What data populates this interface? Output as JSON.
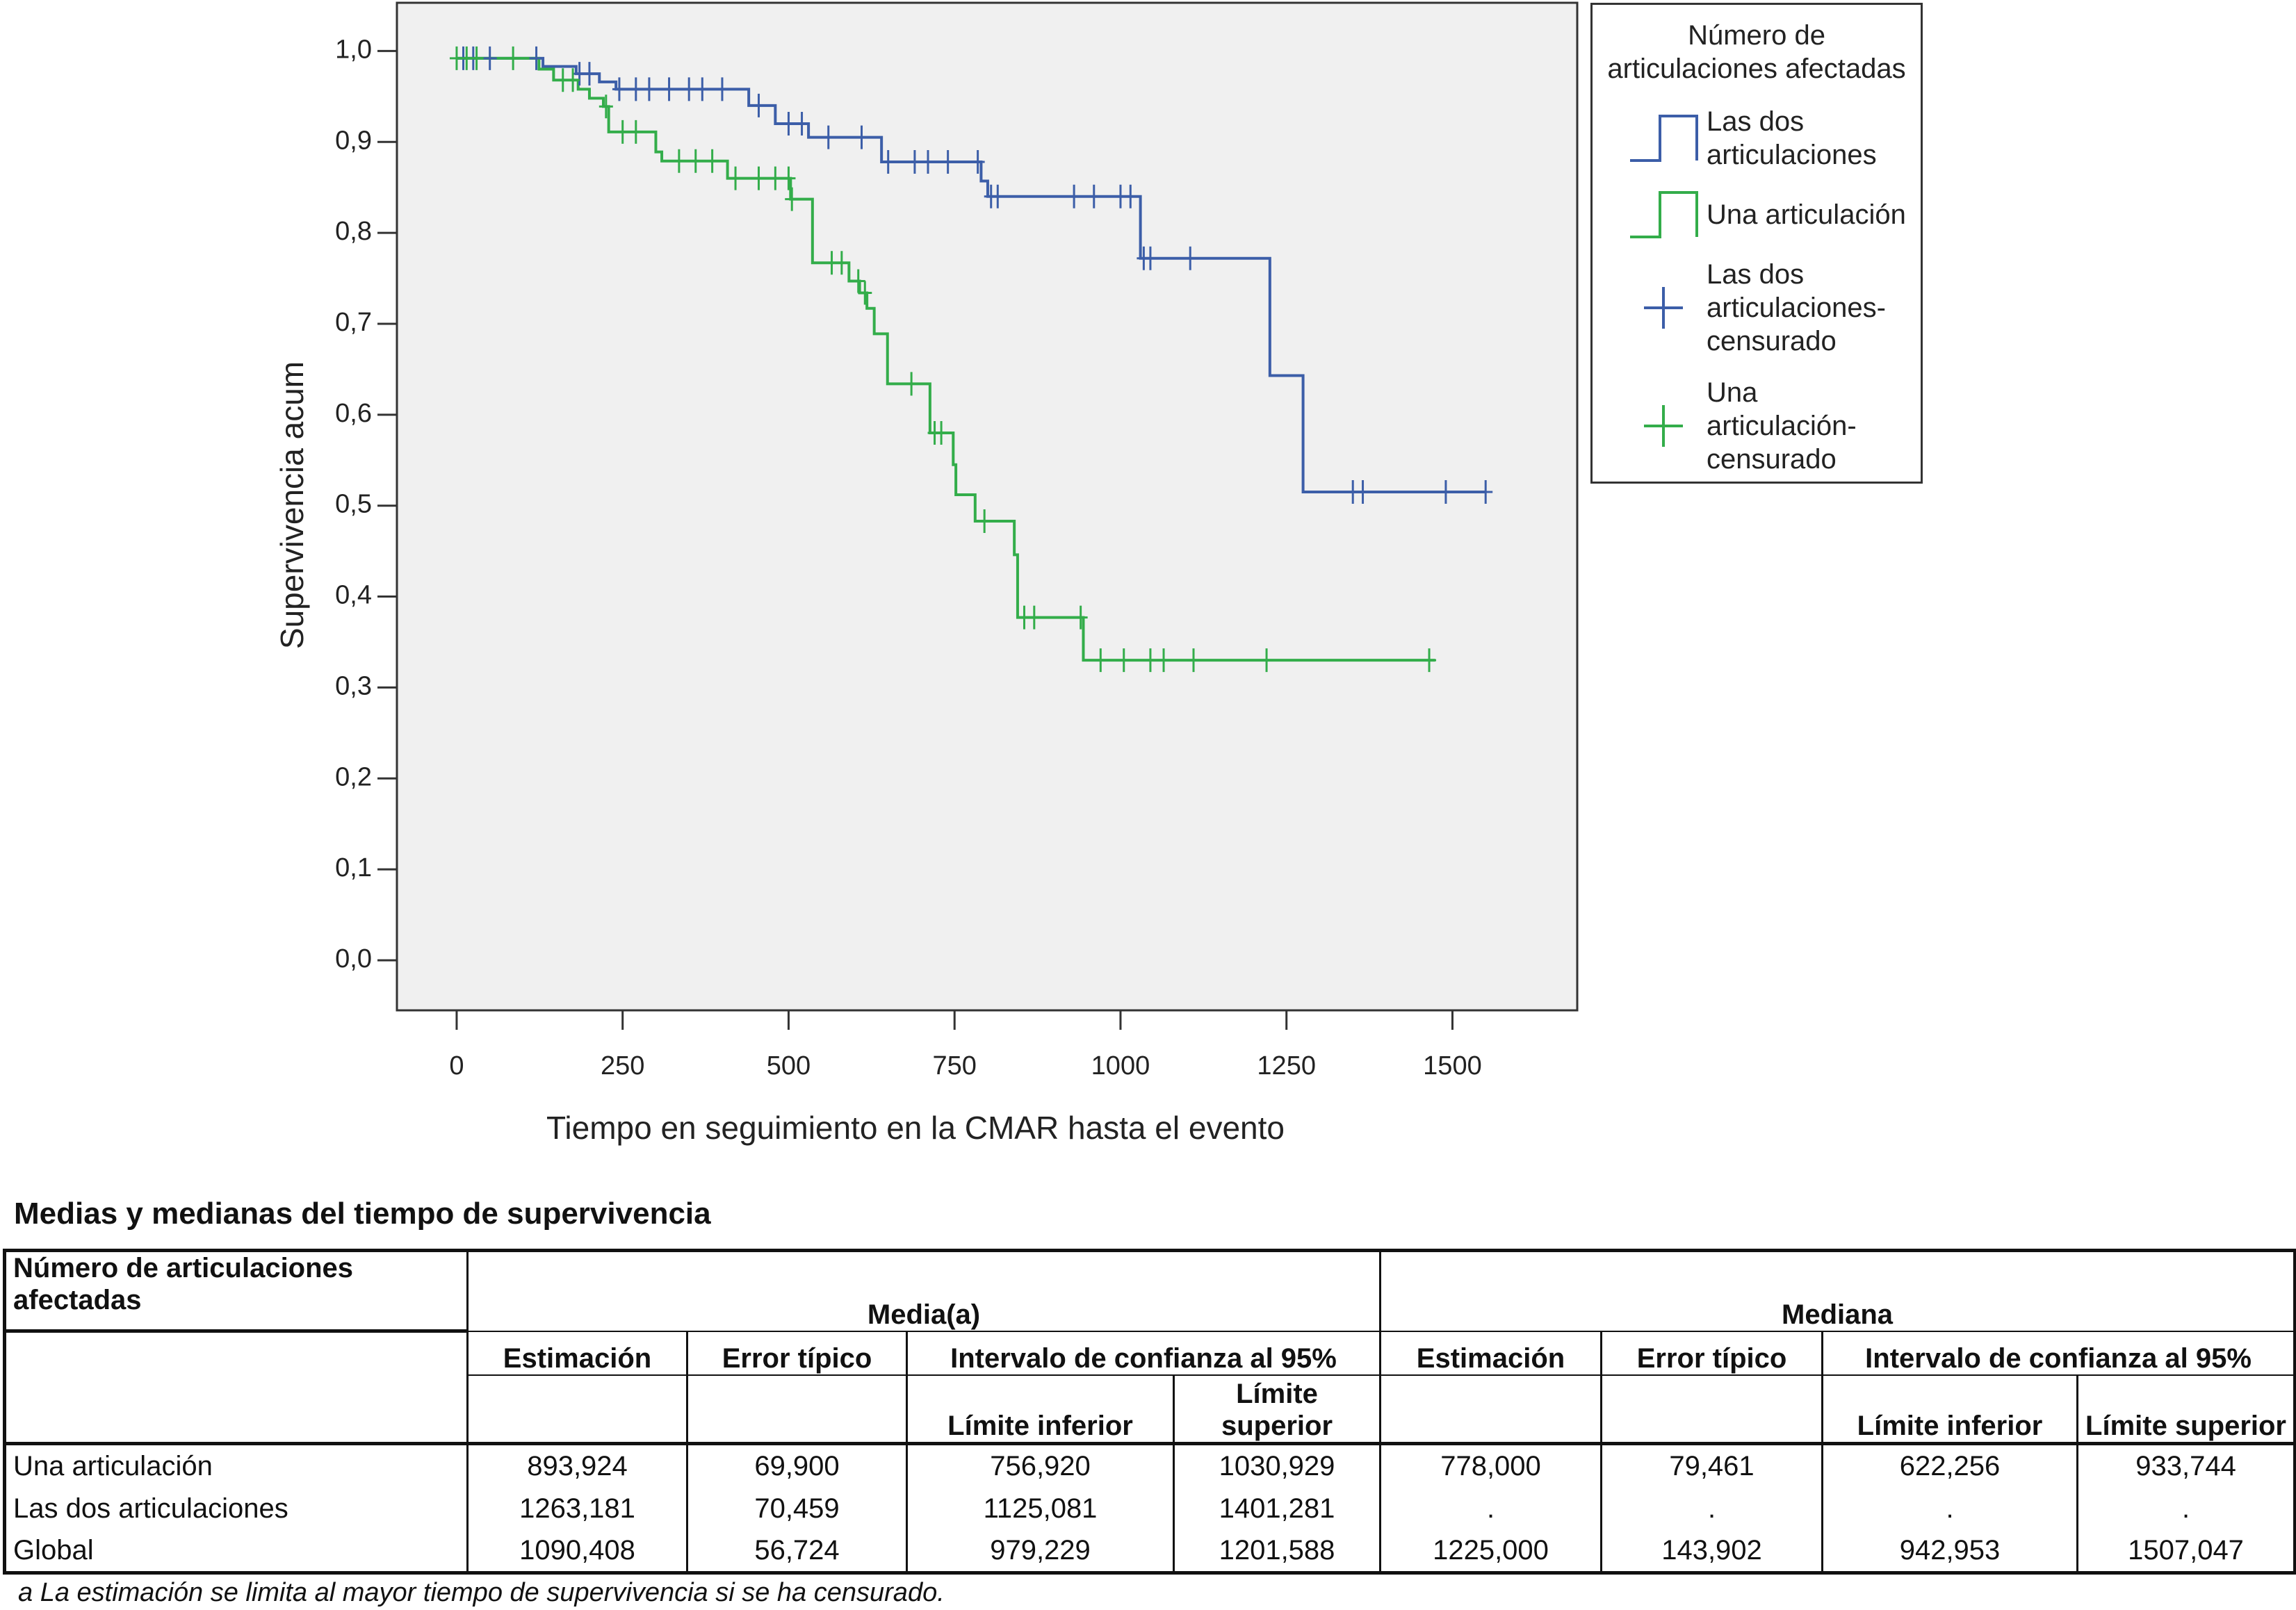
{
  "chart_data": {
    "type": "step",
    "xlabel": "Tiempo en seguimiento en la CMAR hasta el evento",
    "ylabel": "Supervivencia acum",
    "xlim": [
      -90,
      1688
    ],
    "ylim": [
      -0.055,
      1.053
    ],
    "xticks": [
      0,
      250,
      500,
      750,
      1000,
      1250,
      1500
    ],
    "yticks": [
      {
        "value": 0,
        "label": "0,0"
      },
      {
        "value": 0.1,
        "label": "0,1"
      },
      {
        "value": 0.2,
        "label": "0,2"
      },
      {
        "value": 0.3,
        "label": "0,3"
      },
      {
        "value": 0.4,
        "label": "0,4"
      },
      {
        "value": 0.5,
        "label": "0,5"
      },
      {
        "value": 0.6,
        "label": "0,6"
      },
      {
        "value": 0.7,
        "label": "0,7"
      },
      {
        "value": 0.8,
        "label": "0,8"
      },
      {
        "value": 0.9,
        "label": "0,9"
      },
      {
        "value": 1,
        "label": "1,0"
      }
    ],
    "legend_title": "Número de articulaciones afectadas",
    "legend": "right",
    "background": "#f0f0f0",
    "series": [
      {
        "name": "Las dos articulaciones",
        "color": "#3c5ea8",
        "style": "step",
        "x": [
          0,
          130,
          180,
          215,
          240,
          440,
          480,
          530,
          640,
          790,
          800,
          1030,
          1225,
          1275,
          1550
        ],
        "values": [
          0.992,
          0.983,
          0.975,
          0.966,
          0.958,
          0.94,
          0.92,
          0.905,
          0.878,
          0.857,
          0.84,
          0.772,
          0.643,
          0.515,
          0.515
        ]
      },
      {
        "name": "Una articulación",
        "color": "#33ad4a",
        "style": "step",
        "x": [
          0,
          124,
          146,
          183,
          200,
          221,
          229,
          300,
          309,
          408,
          503,
          536,
          591,
          607,
          618,
          629,
          649,
          713,
          748,
          752,
          781,
          840,
          845,
          944,
          1474
        ],
        "values": [
          0.992,
          0.98,
          0.968,
          0.958,
          0.948,
          0.939,
          0.911,
          0.889,
          0.879,
          0.86,
          0.837,
          0.767,
          0.747,
          0.734,
          0.717,
          0.689,
          0.634,
          0.58,
          0.545,
          0.512,
          0.483,
          0.446,
          0.377,
          0.33,
          0.33
        ]
      },
      {
        "name": "Las dos articulaciones-censurado",
        "color": "#3c5ea8",
        "style": "censor",
        "x": [
          10,
          25,
          50,
          120,
          185,
          200,
          245,
          270,
          290,
          320,
          350,
          370,
          400,
          455,
          500,
          520,
          560,
          610,
          650,
          690,
          710,
          740,
          785,
          805,
          815,
          930,
          960,
          1000,
          1015,
          1035,
          1045,
          1105,
          1350,
          1365,
          1490,
          1550
        ],
        "values": [
          0.992,
          0.992,
          0.992,
          0.992,
          0.975,
          0.975,
          0.958,
          0.958,
          0.958,
          0.958,
          0.958,
          0.958,
          0.958,
          0.94,
          0.92,
          0.92,
          0.905,
          0.905,
          0.878,
          0.878,
          0.878,
          0.878,
          0.878,
          0.84,
          0.84,
          0.84,
          0.84,
          0.84,
          0.84,
          0.772,
          0.772,
          0.772,
          0.515,
          0.515,
          0.515,
          0.515
        ]
      },
      {
        "name": "Una articulación-censurado",
        "color": "#33ad4a",
        "style": "censor",
        "x": [
          0,
          15,
          30,
          85,
          160,
          175,
          225,
          250,
          270,
          335,
          360,
          385,
          420,
          455,
          480,
          500,
          505,
          565,
          580,
          605,
          615,
          685,
          720,
          730,
          795,
          855,
          870,
          940,
          970,
          1005,
          1045,
          1065,
          1110,
          1220,
          1465
        ],
        "values": [
          0.992,
          0.992,
          0.992,
          0.992,
          0.968,
          0.968,
          0.939,
          0.911,
          0.911,
          0.879,
          0.879,
          0.879,
          0.86,
          0.86,
          0.86,
          0.86,
          0.837,
          0.767,
          0.767,
          0.747,
          0.734,
          0.634,
          0.58,
          0.58,
          0.483,
          0.377,
          0.377,
          0.377,
          0.33,
          0.33,
          0.33,
          0.33,
          0.33,
          0.33,
          0.33
        ]
      }
    ]
  },
  "table": {
    "title": "Medias y medianas del tiempo de supervivencia",
    "group_header": "Número de articulaciones afectadas",
    "spans": [
      "Media(a)",
      "Mediana"
    ],
    "columns": [
      "Estimación",
      "Error típico",
      "Intervalo de confianza al 95%",
      "Estimación",
      "Error típico",
      "Intervalo de confianza al 95%"
    ],
    "subcolumns": [
      "Límite inferior",
      "Límite superior",
      "Límite inferior",
      "Límite superior"
    ],
    "rows": [
      [
        "Una articulación",
        "893,924",
        "69,900",
        "756,920",
        "1030,929",
        "778,000",
        "79,461",
        "622,256",
        "933,744"
      ],
      [
        "Las dos articulaciones",
        "1263,181",
        "70,459",
        "1125,081",
        "1401,281",
        ".",
        ".",
        ".",
        "."
      ],
      [
        "Global",
        "1090,408",
        "56,724",
        "979,229",
        "1201,588",
        "1225,000",
        "143,902",
        "942,953",
        "1507,047"
      ]
    ],
    "footnote": "a  La estimación se limita al mayor tiempo de supervivencia si se ha censurado."
  }
}
